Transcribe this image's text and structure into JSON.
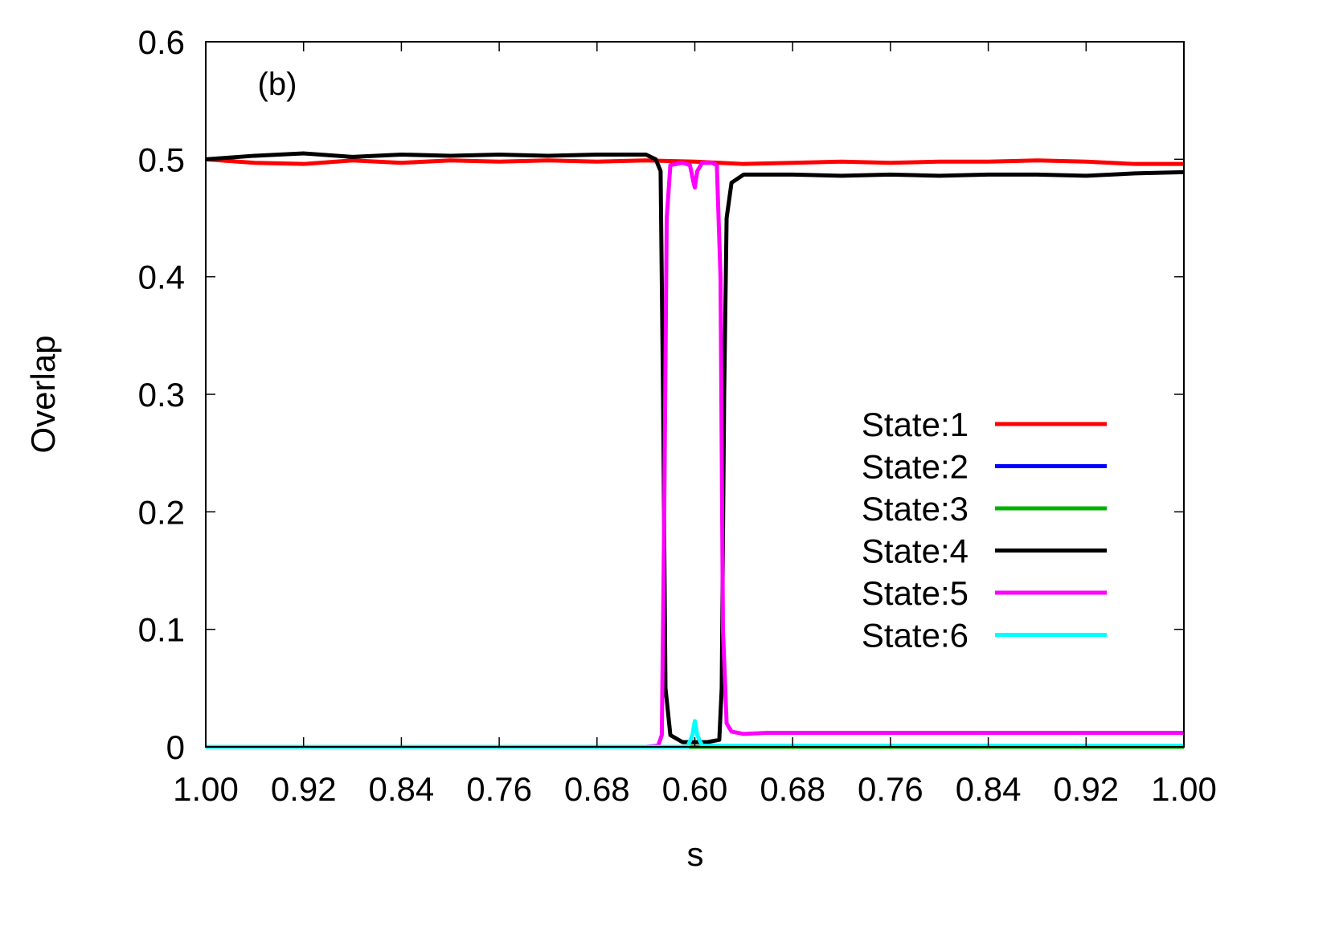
{
  "chart_data": {
    "type": "line",
    "panel_label": "(b)",
    "xlabel": "s",
    "ylabel": "Overlap",
    "x_tick_labels": [
      "1.00",
      "0.92",
      "0.84",
      "0.76",
      "0.68",
      "0.60",
      "0.68",
      "0.76",
      "0.84",
      "0.92",
      "1.00"
    ],
    "x_sweep": "s decreases from 1.00 to 0.60 (left half), then increases back to 1.00 (right half)",
    "ylim": [
      0,
      0.6
    ],
    "y_ticks": [
      0,
      0.1,
      0.2,
      0.3,
      0.4,
      0.5,
      0.6
    ],
    "y_tick_labels": [
      "0",
      "0.1",
      "0.2",
      "0.3",
      "0.4",
      "0.5",
      "0.6"
    ],
    "grid": false,
    "legend_position": "right-middle",
    "series": [
      {
        "name": "State:1",
        "color": "#ff0000",
        "forward": [
          [
            1.0,
            0.5
          ],
          [
            0.96,
            0.497
          ],
          [
            0.92,
            0.496
          ],
          [
            0.88,
            0.499
          ],
          [
            0.84,
            0.497
          ],
          [
            0.8,
            0.499
          ],
          [
            0.76,
            0.498
          ],
          [
            0.72,
            0.499
          ],
          [
            0.68,
            0.498
          ],
          [
            0.64,
            0.499
          ],
          [
            0.6,
            0.498
          ]
        ],
        "reverse": [
          [
            0.6,
            0.498
          ],
          [
            0.64,
            0.496
          ],
          [
            0.68,
            0.497
          ],
          [
            0.72,
            0.498
          ],
          [
            0.76,
            0.497
          ],
          [
            0.8,
            0.498
          ],
          [
            0.84,
            0.498
          ],
          [
            0.88,
            0.499
          ],
          [
            0.92,
            0.498
          ],
          [
            0.96,
            0.496
          ],
          [
            1.0,
            0.496
          ]
        ]
      },
      {
        "name": "State:2",
        "color": "#0000ff",
        "forward": [
          [
            1.0,
            0.0
          ],
          [
            0.6,
            0.0
          ]
        ],
        "reverse": [
          [
            0.6,
            0.0
          ],
          [
            1.0,
            0.0
          ]
        ]
      },
      {
        "name": "State:3",
        "color": "#00b000",
        "forward": [
          [
            1.0,
            0.0
          ],
          [
            0.6,
            0.0
          ]
        ],
        "reverse": [
          [
            0.6,
            0.0
          ],
          [
            1.0,
            0.0
          ]
        ]
      },
      {
        "name": "State:4",
        "color": "#000000",
        "forward": [
          [
            1.0,
            0.5
          ],
          [
            0.96,
            0.503
          ],
          [
            0.92,
            0.505
          ],
          [
            0.88,
            0.502
          ],
          [
            0.84,
            0.504
          ],
          [
            0.8,
            0.503
          ],
          [
            0.76,
            0.504
          ],
          [
            0.72,
            0.503
          ],
          [
            0.68,
            0.504
          ],
          [
            0.64,
            0.504
          ],
          [
            0.632,
            0.5
          ],
          [
            0.628,
            0.49
          ],
          [
            0.626,
            0.3
          ],
          [
            0.624,
            0.05
          ],
          [
            0.62,
            0.01
          ],
          [
            0.61,
            0.004
          ],
          [
            0.6,
            0.004
          ]
        ],
        "reverse": [
          [
            0.6,
            0.004
          ],
          [
            0.61,
            0.004
          ],
          [
            0.62,
            0.006
          ],
          [
            0.622,
            0.05
          ],
          [
            0.624,
            0.3
          ],
          [
            0.626,
            0.45
          ],
          [
            0.63,
            0.48
          ],
          [
            0.64,
            0.487
          ],
          [
            0.68,
            0.487
          ],
          [
            0.72,
            0.486
          ],
          [
            0.76,
            0.487
          ],
          [
            0.8,
            0.486
          ],
          [
            0.84,
            0.487
          ],
          [
            0.88,
            0.487
          ],
          [
            0.92,
            0.486
          ],
          [
            0.96,
            0.488
          ],
          [
            1.0,
            0.489
          ]
        ]
      },
      {
        "name": "State:5",
        "color": "#ff00ff",
        "forward": [
          [
            1.0,
            0.0
          ],
          [
            0.64,
            0.0
          ],
          [
            0.63,
            0.001
          ],
          [
            0.627,
            0.01
          ],
          [
            0.625,
            0.2
          ],
          [
            0.623,
            0.45
          ],
          [
            0.62,
            0.495
          ],
          [
            0.61,
            0.497
          ],
          [
            0.604,
            0.495
          ],
          [
            0.601,
            0.48
          ],
          [
            0.6,
            0.476
          ]
        ],
        "reverse": [
          [
            0.6,
            0.476
          ],
          [
            0.602,
            0.49
          ],
          [
            0.606,
            0.497
          ],
          [
            0.614,
            0.497
          ],
          [
            0.618,
            0.495
          ],
          [
            0.621,
            0.4
          ],
          [
            0.623,
            0.1
          ],
          [
            0.626,
            0.02
          ],
          [
            0.63,
            0.013
          ],
          [
            0.64,
            0.011
          ],
          [
            0.66,
            0.012
          ],
          [
            0.7,
            0.012
          ],
          [
            1.0,
            0.012
          ]
        ]
      },
      {
        "name": "State:6",
        "color": "#00ffff",
        "forward": [
          [
            1.0,
            0.0
          ],
          [
            0.606,
            0.0
          ],
          [
            0.602,
            0.01
          ],
          [
            0.6,
            0.022
          ]
        ],
        "reverse": [
          [
            0.6,
            0.022
          ],
          [
            0.602,
            0.01
          ],
          [
            0.606,
            0.001
          ],
          [
            1.0,
            0.001
          ]
        ]
      }
    ]
  }
}
